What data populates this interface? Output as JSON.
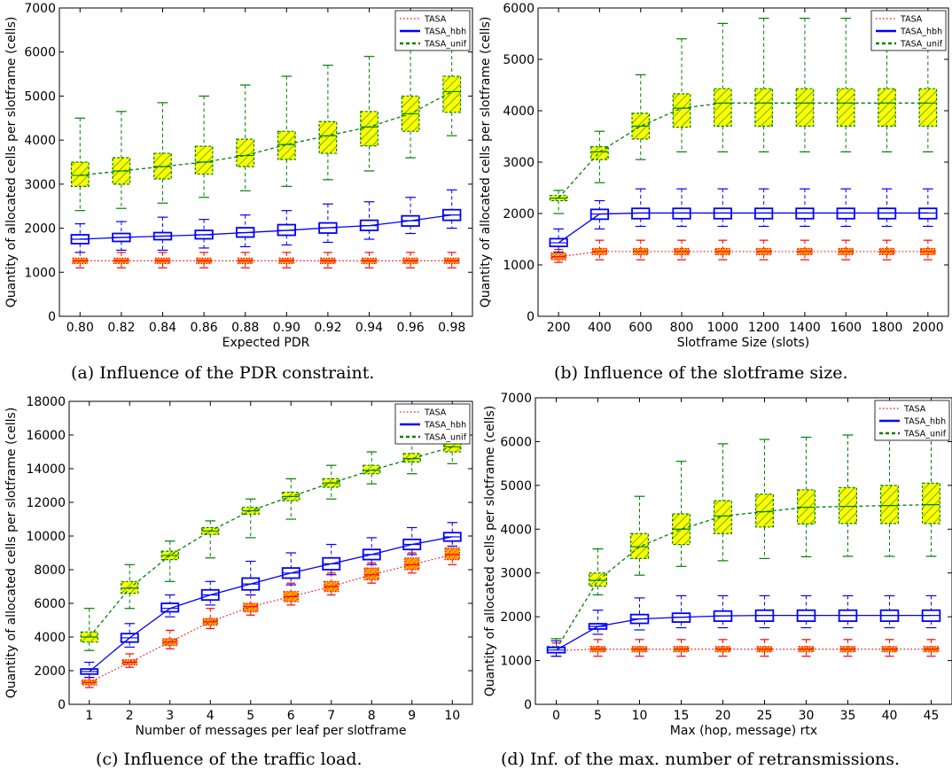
{
  "chart_data": [
    {
      "type": "box",
      "caption": "(a) Influence of the PDR constraint.",
      "xlabel": "Expected PDR",
      "ylabel": "Quantity of allocated cells per slotframe (cells)",
      "categories": [
        "0.80",
        "0.82",
        "0.84",
        "0.86",
        "0.88",
        "0.90",
        "0.92",
        "0.94",
        "0.96",
        "0.98"
      ],
      "ylim": [
        0,
        7000
      ],
      "yticks": [
        "0",
        "1000",
        "2000",
        "3000",
        "4000",
        "5000",
        "6000",
        "7000"
      ],
      "legend": {
        "position": "top-right",
        "entries": [
          "TASA",
          "TASA_hbh",
          "TASA_unif"
        ]
      },
      "series": [
        {
          "name": "TASA",
          "mean": [
            1260,
            1260,
            1260,
            1260,
            1260,
            1260,
            1260,
            1260,
            1260,
            1260
          ],
          "q1": [
            1200,
            1200,
            1200,
            1200,
            1200,
            1200,
            1200,
            1200,
            1200,
            1200
          ],
          "q3": [
            1320,
            1320,
            1320,
            1320,
            1320,
            1320,
            1320,
            1320,
            1320,
            1320
          ],
          "wlo": [
            1100,
            1100,
            1100,
            1100,
            1100,
            1100,
            1100,
            1100,
            1100,
            1100
          ],
          "whi": [
            1450,
            1450,
            1450,
            1450,
            1450,
            1450,
            1450,
            1450,
            1450,
            1450
          ]
        },
        {
          "name": "TASA_hbh",
          "mean": [
            1750,
            1790,
            1820,
            1850,
            1900,
            1950,
            2010,
            2060,
            2170,
            2300
          ],
          "q1": [
            1650,
            1700,
            1740,
            1760,
            1800,
            1840,
            1890,
            1950,
            2050,
            2180
          ],
          "q3": [
            1850,
            1880,
            1900,
            1950,
            2010,
            2080,
            2120,
            2180,
            2280,
            2420
          ],
          "wlo": [
            1450,
            1500,
            1500,
            1550,
            1580,
            1620,
            1680,
            1750,
            1880,
            2000
          ],
          "whi": [
            2100,
            2150,
            2250,
            2200,
            2300,
            2400,
            2550,
            2600,
            2700,
            2870
          ]
        },
        {
          "name": "TASA_unif",
          "mean": [
            3200,
            3300,
            3400,
            3500,
            3650,
            3900,
            4100,
            4300,
            4600,
            5100
          ],
          "q1": [
            2950,
            3000,
            3120,
            3230,
            3400,
            3560,
            3700,
            3870,
            4200,
            4630
          ],
          "q3": [
            3500,
            3600,
            3700,
            3860,
            4020,
            4200,
            4420,
            4650,
            5000,
            5450
          ],
          "wlo": [
            2400,
            2450,
            2570,
            2700,
            2850,
            2950,
            3100,
            3300,
            3600,
            4100
          ],
          "whi": [
            4500,
            4650,
            4850,
            5000,
            5250,
            5450,
            5700,
            5900,
            6600,
            6900
          ]
        }
      ]
    },
    {
      "type": "box",
      "caption": "(b) Influence of the slotframe size.",
      "xlabel": "Slotframe Size (slots)",
      "ylabel": "Quantity of allocated cells per slotframe (cells)",
      "categories": [
        "200",
        "400",
        "600",
        "800",
        "1000",
        "1200",
        "1400",
        "1600",
        "1800",
        "2000"
      ],
      "ylim": [
        0,
        6000
      ],
      "yticks": [
        "0",
        "1000",
        "2000",
        "3000",
        "4000",
        "5000",
        "6000"
      ],
      "legend": {
        "position": "top-right",
        "entries": [
          "TASA",
          "TASA_hbh",
          "TASA_unif"
        ]
      },
      "series": [
        {
          "name": "TASA",
          "mean": [
            1160,
            1260,
            1260,
            1260,
            1260,
            1260,
            1260,
            1260,
            1260,
            1260
          ],
          "q1": [
            1100,
            1200,
            1200,
            1200,
            1200,
            1200,
            1200,
            1200,
            1200,
            1200
          ],
          "q3": [
            1230,
            1320,
            1320,
            1320,
            1320,
            1320,
            1320,
            1320,
            1320,
            1320
          ],
          "wlo": [
            1050,
            1100,
            1100,
            1100,
            1100,
            1100,
            1100,
            1100,
            1100,
            1100
          ],
          "whi": [
            1300,
            1480,
            1480,
            1480,
            1480,
            1480,
            1480,
            1480,
            1480,
            1480
          ]
        },
        {
          "name": "TASA_hbh",
          "mean": [
            1430,
            1990,
            2010,
            2010,
            2010,
            2010,
            2010,
            2010,
            2010,
            2010
          ],
          "q1": [
            1360,
            1890,
            1900,
            1900,
            1900,
            1900,
            1900,
            1900,
            1900,
            1900
          ],
          "q3": [
            1510,
            2080,
            2100,
            2100,
            2100,
            2100,
            2100,
            2100,
            2100,
            2100
          ],
          "wlo": [
            1250,
            1700,
            1750,
            1750,
            1750,
            1750,
            1750,
            1750,
            1750,
            1750
          ],
          "whi": [
            1700,
            2250,
            2480,
            2480,
            2480,
            2480,
            2480,
            2480,
            2480,
            2480
          ]
        },
        {
          "name": "TASA_unif",
          "mean": [
            2300,
            3200,
            3700,
            4050,
            4150,
            4150,
            4150,
            4150,
            4150,
            4150
          ],
          "q1": [
            2250,
            3050,
            3450,
            3680,
            3700,
            3700,
            3700,
            3700,
            3700,
            3700
          ],
          "q3": [
            2350,
            3300,
            3950,
            4330,
            4430,
            4430,
            4430,
            4430,
            4430,
            4430
          ],
          "wlo": [
            2000,
            2600,
            3050,
            3200,
            3200,
            3200,
            3200,
            3200,
            3200,
            3200
          ],
          "whi": [
            2450,
            3600,
            4700,
            5400,
            5700,
            5800,
            5800,
            5800,
            5800,
            5800
          ]
        }
      ]
    },
    {
      "type": "box",
      "caption": "(c) Influence of the traffic load.",
      "xlabel": "Number of messages per leaf per slotframe",
      "ylabel": "Quantity of allocated cells per slotframe (cells)",
      "categories": [
        "1",
        "2",
        "3",
        "4",
        "5",
        "6",
        "7",
        "8",
        "9",
        "10"
      ],
      "ylim": [
        0,
        18000
      ],
      "yticks": [
        "0",
        "2000",
        "4000",
        "6000",
        "8000",
        "10000",
        "12000",
        "14000",
        "16000",
        "18000"
      ],
      "legend": {
        "position": "top-right",
        "entries": [
          "TASA",
          "TASA_hbh",
          "TASA_unif"
        ]
      },
      "series": [
        {
          "name": "TASA",
          "mean": [
            1300,
            2500,
            3700,
            4900,
            5800,
            6400,
            7000,
            7700,
            8300,
            8900
          ],
          "q1": [
            1150,
            2350,
            3500,
            4700,
            5500,
            6100,
            6700,
            7400,
            8000,
            8600
          ],
          "q3": [
            1450,
            2650,
            3900,
            5100,
            6000,
            6700,
            7300,
            8100,
            8700,
            9300
          ],
          "wlo": [
            1000,
            2200,
            3300,
            4500,
            5300,
            5900,
            6500,
            7200,
            7800,
            8300
          ],
          "whi": [
            1600,
            3000,
            4400,
            5700,
            6500,
            7200,
            7800,
            8400,
            9000,
            9700
          ]
        },
        {
          "name": "TASA_hbh",
          "mean": [
            1950,
            3950,
            5700,
            6500,
            7150,
            7800,
            8350,
            8900,
            9500,
            9950
          ],
          "q1": [
            1800,
            3700,
            5500,
            6200,
            6800,
            7500,
            8000,
            8600,
            9200,
            9700
          ],
          "q3": [
            2100,
            4200,
            6000,
            6800,
            7500,
            8100,
            8700,
            9200,
            9800,
            10200
          ],
          "wlo": [
            1600,
            3400,
            5200,
            5900,
            6500,
            7100,
            7700,
            8300,
            8900,
            9400
          ],
          "whi": [
            2500,
            4800,
            6500,
            7300,
            8500,
            9000,
            9500,
            9900,
            10500,
            10800
          ]
        },
        {
          "name": "TASA_unif",
          "mean": [
            4000,
            6900,
            8850,
            10300,
            11500,
            12350,
            13150,
            13900,
            14600,
            15300
          ],
          "q1": [
            3700,
            6600,
            8600,
            10100,
            11300,
            12100,
            12900,
            13700,
            14400,
            15000
          ],
          "q3": [
            4300,
            7300,
            9100,
            10500,
            11700,
            12600,
            13400,
            14200,
            14900,
            15600
          ],
          "wlo": [
            3200,
            5700,
            7300,
            8700,
            9900,
            11000,
            12200,
            13100,
            13700,
            14300
          ],
          "whi": [
            5700,
            8300,
            9700,
            10900,
            12200,
            13400,
            14200,
            15000,
            15700,
            16200
          ]
        }
      ]
    },
    {
      "type": "box",
      "caption": "(d) Inf. of the max. number of retransmissions.",
      "xlabel": "Max (hop, message) rtx",
      "ylabel": "Quantity of allocated cells per slotframe (cells)",
      "categories": [
        "0",
        "5",
        "10",
        "15",
        "20",
        "25",
        "30",
        "35",
        "40",
        "45"
      ],
      "ylim": [
        0,
        7000
      ],
      "yticks": [
        "0",
        "1000",
        "2000",
        "3000",
        "4000",
        "5000",
        "6000",
        "7000"
      ],
      "legend": {
        "position": "top-right",
        "entries": [
          "TASA",
          "TASA_hbh",
          "TASA_unif"
        ]
      },
      "series": [
        {
          "name": "TASA",
          "mean": [
            1230,
            1260,
            1260,
            1260,
            1260,
            1260,
            1260,
            1260,
            1260,
            1260
          ],
          "q1": [
            1180,
            1200,
            1200,
            1200,
            1200,
            1200,
            1200,
            1200,
            1200,
            1200
          ],
          "q3": [
            1280,
            1320,
            1320,
            1320,
            1320,
            1320,
            1320,
            1320,
            1320,
            1320
          ],
          "wlo": [
            1100,
            1100,
            1100,
            1100,
            1100,
            1100,
            1100,
            1100,
            1100,
            1100
          ],
          "whi": [
            1400,
            1480,
            1480,
            1480,
            1480,
            1480,
            1480,
            1480,
            1480,
            1480
          ]
        },
        {
          "name": "TASA_hbh",
          "mean": [
            1240,
            1780,
            1950,
            1990,
            2020,
            2030,
            2030,
            2030,
            2030,
            2030
          ],
          "q1": [
            1180,
            1720,
            1850,
            1880,
            1900,
            1900,
            1900,
            1900,
            1900,
            1900
          ],
          "q3": [
            1300,
            1840,
            2050,
            2080,
            2130,
            2150,
            2150,
            2150,
            2150,
            2150
          ],
          "wlo": [
            1100,
            1600,
            1700,
            1750,
            1750,
            1750,
            1750,
            1750,
            1750,
            1750
          ],
          "whi": [
            1450,
            2150,
            2430,
            2480,
            2480,
            2480,
            2480,
            2480,
            2480,
            2480
          ]
        },
        {
          "name": "TASA_unif",
          "mean": [
            1260,
            2830,
            3600,
            4000,
            4300,
            4400,
            4500,
            4520,
            4540,
            4560
          ],
          "q1": [
            1200,
            2700,
            3330,
            3650,
            3900,
            4050,
            4120,
            4130,
            4130,
            4130
          ],
          "q3": [
            1320,
            3000,
            3900,
            4350,
            4650,
            4800,
            4900,
            4950,
            5000,
            5050
          ],
          "wlo": [
            1100,
            2500,
            2950,
            3150,
            3280,
            3330,
            3370,
            3380,
            3380,
            3380
          ],
          "whi": [
            1500,
            3550,
            4750,
            5550,
            5950,
            6050,
            6100,
            6150,
            6150,
            6150
          ]
        }
      ]
    }
  ]
}
